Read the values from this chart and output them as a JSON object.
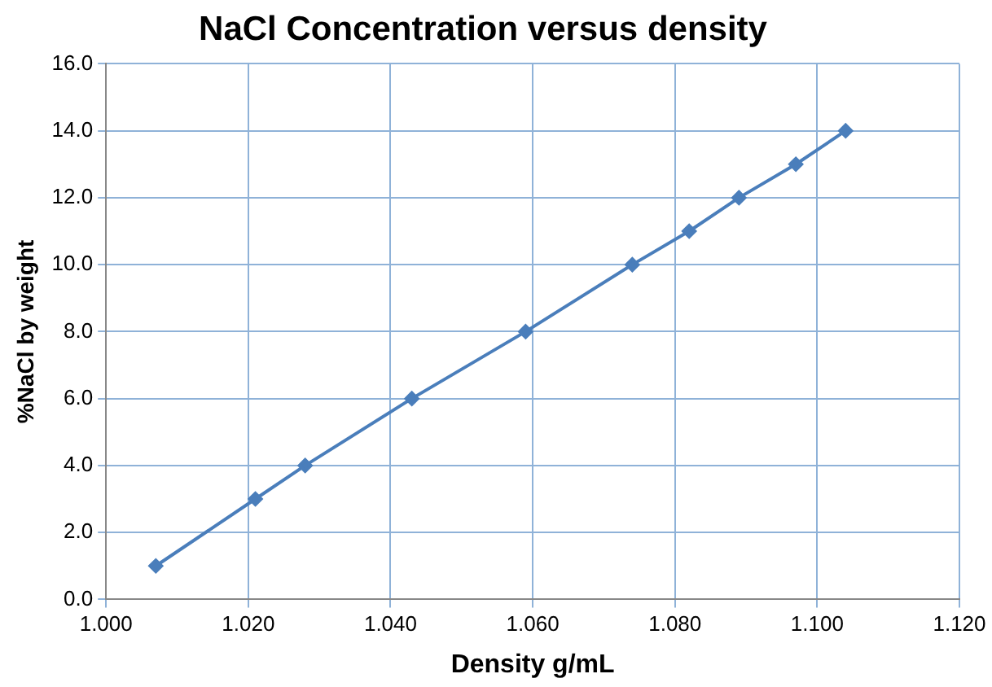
{
  "chart_data": {
    "type": "line",
    "title": "NaCl Concentration versus density",
    "xlabel": "Density g/mL",
    "ylabel": "%NaCl by weight",
    "x": [
      1.007,
      1.021,
      1.028,
      1.043,
      1.059,
      1.074,
      1.082,
      1.089,
      1.097,
      1.104
    ],
    "series": [
      {
        "color": "#4a7ebb",
        "values": [
          1,
          3,
          4,
          6,
          8,
          10,
          11,
          12,
          13,
          14
        ]
      }
    ],
    "xlim": [
      1.0,
      1.12
    ],
    "xticks": [
      {
        "value": 1.0,
        "label": "1.000"
      },
      {
        "value": 1.02,
        "label": "1.020"
      },
      {
        "value": 1.04,
        "label": "1.040"
      },
      {
        "value": 1.06,
        "label": "1.060"
      },
      {
        "value": 1.08,
        "label": "1.080"
      },
      {
        "value": 1.1,
        "label": "1.100"
      },
      {
        "value": 1.12,
        "label": "1.120"
      }
    ],
    "ylim": [
      0,
      16
    ],
    "yticks": [
      {
        "value": 0,
        "label": "0.0"
      },
      {
        "value": 2,
        "label": "2.0"
      },
      {
        "value": 4,
        "label": "4.0"
      },
      {
        "value": 6,
        "label": "6.0"
      },
      {
        "value": 8,
        "label": "8.0"
      },
      {
        "value": 10,
        "label": "10.0"
      },
      {
        "value": 12,
        "label": "12.0"
      },
      {
        "value": 14,
        "label": "14.0"
      },
      {
        "value": 16,
        "label": "16.0"
      }
    ],
    "grid": true,
    "legend": false,
    "marker": "diamond",
    "line_style": "solid"
  }
}
